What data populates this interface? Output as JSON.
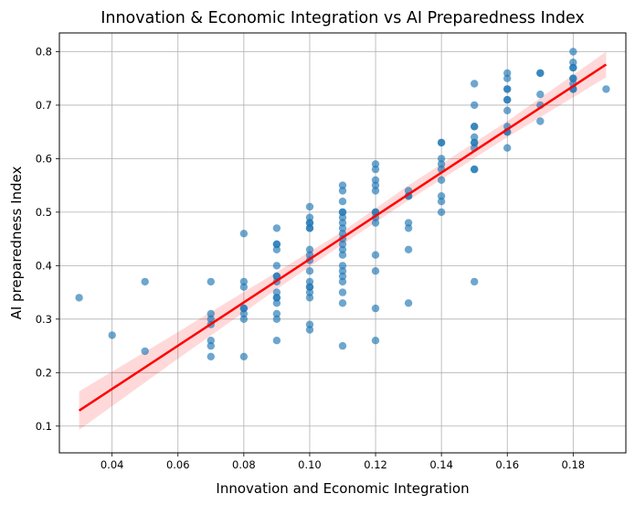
{
  "chart_data": {
    "type": "scatter",
    "title": "Innovation & Economic Integration vs AI Preparedness Index",
    "xlabel": "Innovation and Economic Integration",
    "ylabel": "AI preparedness Index",
    "xlim": [
      0.024,
      0.196
    ],
    "ylim": [
      0.05,
      0.835
    ],
    "xticks": [
      0.04,
      0.06,
      0.08,
      0.1,
      0.12,
      0.14,
      0.16,
      0.18
    ],
    "xtick_labels": [
      "0.04",
      "0.06",
      "0.08",
      "0.10",
      "0.12",
      "0.14",
      "0.16",
      "0.18"
    ],
    "yticks": [
      0.1,
      0.2,
      0.3,
      0.4,
      0.5,
      0.6,
      0.7,
      0.8
    ],
    "ytick_labels": [
      "0.1",
      "0.2",
      "0.3",
      "0.4",
      "0.5",
      "0.6",
      "0.7",
      "0.8"
    ],
    "grid": true,
    "colors": {
      "points": "#1f77b4",
      "regression_line": "#ff0000",
      "confidence_band": "#ff0000",
      "grid": "#b0b0b0"
    },
    "regression": {
      "x": [
        0.03,
        0.19
      ],
      "y": [
        0.129,
        0.776
      ],
      "ci_x": [
        0.03,
        0.06,
        0.09,
        0.11,
        0.13,
        0.16,
        0.19
      ],
      "ci_lower": [
        0.093,
        0.226,
        0.356,
        0.44,
        0.522,
        0.64,
        0.752
      ],
      "ci_upper": [
        0.165,
        0.276,
        0.388,
        0.464,
        0.55,
        0.67,
        0.8
      ]
    },
    "points": [
      [
        0.03,
        0.34
      ],
      [
        0.04,
        0.27
      ],
      [
        0.05,
        0.37
      ],
      [
        0.05,
        0.24
      ],
      [
        0.07,
        0.37
      ],
      [
        0.07,
        0.31
      ],
      [
        0.07,
        0.3
      ],
      [
        0.07,
        0.29
      ],
      [
        0.07,
        0.26
      ],
      [
        0.07,
        0.25
      ],
      [
        0.07,
        0.23
      ],
      [
        0.08,
        0.46
      ],
      [
        0.08,
        0.37
      ],
      [
        0.08,
        0.36
      ],
      [
        0.08,
        0.32
      ],
      [
        0.08,
        0.32
      ],
      [
        0.08,
        0.31
      ],
      [
        0.08,
        0.3
      ],
      [
        0.08,
        0.23
      ],
      [
        0.09,
        0.47
      ],
      [
        0.09,
        0.44
      ],
      [
        0.09,
        0.44
      ],
      [
        0.09,
        0.43
      ],
      [
        0.09,
        0.4
      ],
      [
        0.09,
        0.38
      ],
      [
        0.09,
        0.38
      ],
      [
        0.09,
        0.37
      ],
      [
        0.09,
        0.35
      ],
      [
        0.09,
        0.34
      ],
      [
        0.09,
        0.34
      ],
      [
        0.09,
        0.33
      ],
      [
        0.09,
        0.31
      ],
      [
        0.09,
        0.3
      ],
      [
        0.09,
        0.26
      ],
      [
        0.1,
        0.51
      ],
      [
        0.1,
        0.49
      ],
      [
        0.1,
        0.48
      ],
      [
        0.1,
        0.48
      ],
      [
        0.1,
        0.47
      ],
      [
        0.1,
        0.47
      ],
      [
        0.1,
        0.43
      ],
      [
        0.1,
        0.42
      ],
      [
        0.1,
        0.41
      ],
      [
        0.1,
        0.39
      ],
      [
        0.1,
        0.37
      ],
      [
        0.1,
        0.36
      ],
      [
        0.1,
        0.36
      ],
      [
        0.1,
        0.35
      ],
      [
        0.1,
        0.34
      ],
      [
        0.1,
        0.29
      ],
      [
        0.1,
        0.28
      ],
      [
        0.11,
        0.55
      ],
      [
        0.11,
        0.54
      ],
      [
        0.11,
        0.52
      ],
      [
        0.11,
        0.5
      ],
      [
        0.11,
        0.5
      ],
      [
        0.11,
        0.49
      ],
      [
        0.11,
        0.48
      ],
      [
        0.11,
        0.47
      ],
      [
        0.11,
        0.46
      ],
      [
        0.11,
        0.45
      ],
      [
        0.11,
        0.44
      ],
      [
        0.11,
        0.43
      ],
      [
        0.11,
        0.42
      ],
      [
        0.11,
        0.4
      ],
      [
        0.11,
        0.39
      ],
      [
        0.11,
        0.38
      ],
      [
        0.11,
        0.37
      ],
      [
        0.11,
        0.35
      ],
      [
        0.11,
        0.33
      ],
      [
        0.11,
        0.25
      ],
      [
        0.12,
        0.59
      ],
      [
        0.12,
        0.58
      ],
      [
        0.12,
        0.56
      ],
      [
        0.12,
        0.55
      ],
      [
        0.12,
        0.54
      ],
      [
        0.12,
        0.5
      ],
      [
        0.12,
        0.5
      ],
      [
        0.12,
        0.49
      ],
      [
        0.12,
        0.48
      ],
      [
        0.12,
        0.42
      ],
      [
        0.12,
        0.39
      ],
      [
        0.12,
        0.32
      ],
      [
        0.12,
        0.26
      ],
      [
        0.13,
        0.54
      ],
      [
        0.13,
        0.53
      ],
      [
        0.13,
        0.53
      ],
      [
        0.13,
        0.48
      ],
      [
        0.13,
        0.47
      ],
      [
        0.13,
        0.43
      ],
      [
        0.13,
        0.33
      ],
      [
        0.14,
        0.63
      ],
      [
        0.14,
        0.63
      ],
      [
        0.14,
        0.6
      ],
      [
        0.14,
        0.59
      ],
      [
        0.14,
        0.58
      ],
      [
        0.14,
        0.56
      ],
      [
        0.14,
        0.53
      ],
      [
        0.14,
        0.52
      ],
      [
        0.14,
        0.5
      ],
      [
        0.15,
        0.74
      ],
      [
        0.15,
        0.7
      ],
      [
        0.15,
        0.66
      ],
      [
        0.15,
        0.66
      ],
      [
        0.15,
        0.64
      ],
      [
        0.15,
        0.63
      ],
      [
        0.15,
        0.63
      ],
      [
        0.15,
        0.62
      ],
      [
        0.15,
        0.58
      ],
      [
        0.15,
        0.58
      ],
      [
        0.15,
        0.37
      ],
      [
        0.16,
        0.76
      ],
      [
        0.16,
        0.75
      ],
      [
        0.16,
        0.73
      ],
      [
        0.16,
        0.73
      ],
      [
        0.16,
        0.71
      ],
      [
        0.16,
        0.71
      ],
      [
        0.16,
        0.69
      ],
      [
        0.16,
        0.66
      ],
      [
        0.16,
        0.65
      ],
      [
        0.16,
        0.65
      ],
      [
        0.16,
        0.62
      ],
      [
        0.17,
        0.76
      ],
      [
        0.17,
        0.76
      ],
      [
        0.17,
        0.72
      ],
      [
        0.17,
        0.7
      ],
      [
        0.17,
        0.67
      ],
      [
        0.18,
        0.8
      ],
      [
        0.18,
        0.78
      ],
      [
        0.18,
        0.77
      ],
      [
        0.18,
        0.77
      ],
      [
        0.18,
        0.75
      ],
      [
        0.18,
        0.75
      ],
      [
        0.18,
        0.74
      ],
      [
        0.18,
        0.73
      ],
      [
        0.18,
        0.73
      ],
      [
        0.19,
        0.73
      ]
    ]
  }
}
